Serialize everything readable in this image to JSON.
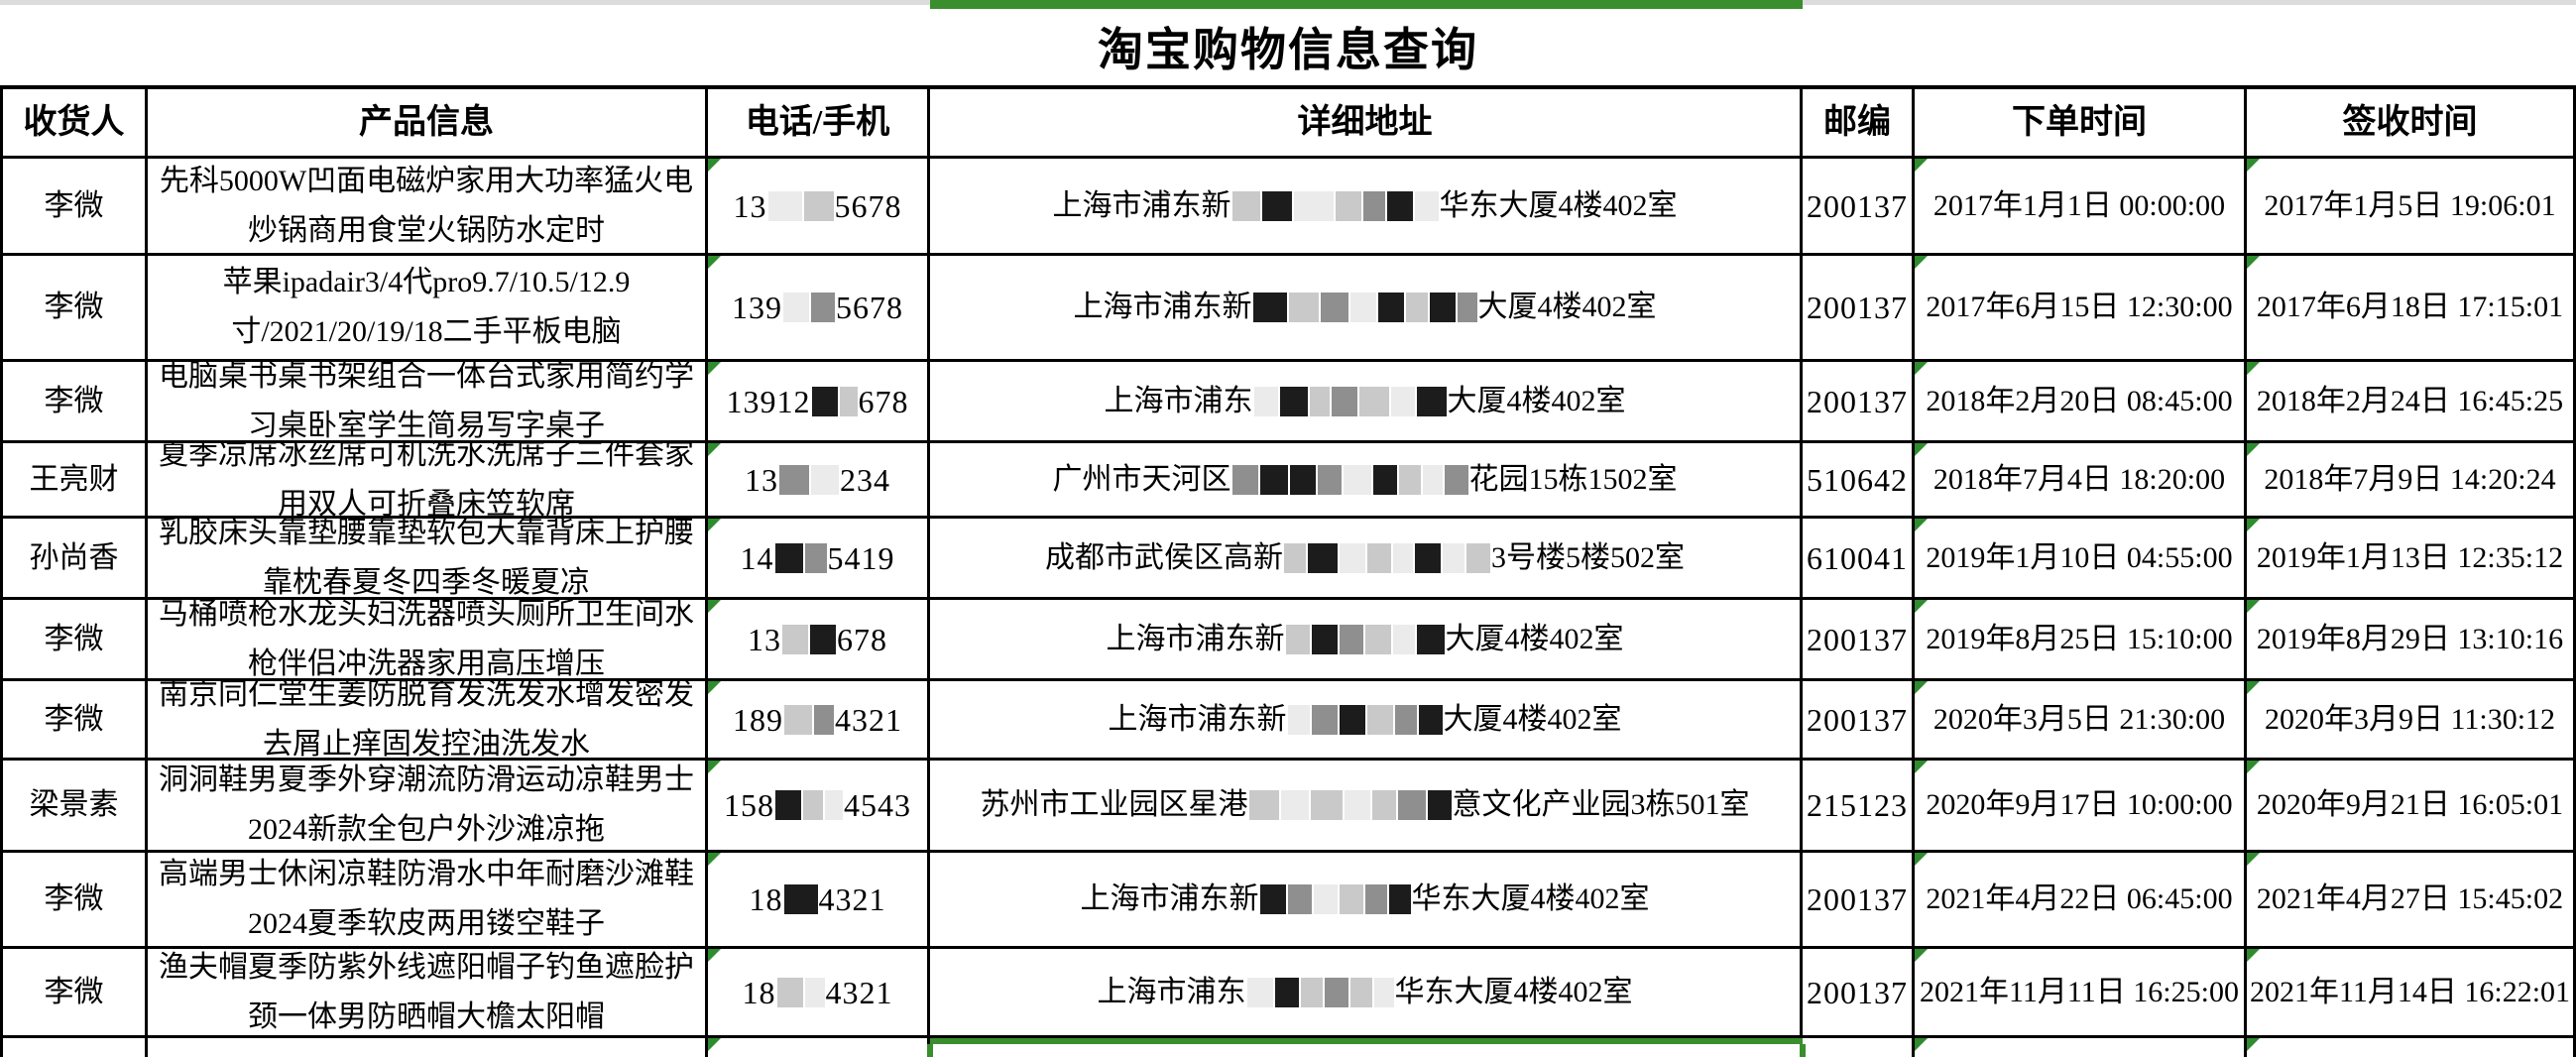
{
  "title": "淘宝购物信息查询",
  "columns": [
    {
      "key": "recipient",
      "label": "收货人"
    },
    {
      "key": "product",
      "label": "产品信息"
    },
    {
      "key": "phone",
      "label": "电话/手机"
    },
    {
      "key": "address",
      "label": "详细地址"
    },
    {
      "key": "postcode",
      "label": "邮编"
    },
    {
      "key": "order_time",
      "label": "下单时间"
    },
    {
      "key": "sign_time",
      "label": "签收时间"
    }
  ],
  "rows": [
    {
      "recipient": "李微",
      "product": "先科5000W凹面电磁炉家用大功率猛火电炒锅商用食堂火锅防水定时",
      "phone": {
        "prefix": "13",
        "boxes": [
          {
            "shade": "faint",
            "w": 34
          },
          {
            "shade": "light",
            "w": 30
          }
        ],
        "suffix": "5678"
      },
      "address": {
        "prefix": "上海市浦东新",
        "boxes": [
          {
            "shade": "light",
            "w": 28
          },
          {
            "shade": "dark",
            "w": 30
          },
          {
            "shade": "faint",
            "w": 40
          },
          {
            "shade": "light",
            "w": 26
          },
          {
            "shade": "mid",
            "w": 22
          },
          {
            "shade": "dark",
            "w": 26
          },
          {
            "shade": "faint",
            "w": 24
          }
        ],
        "suffix": "华东大厦4楼402室"
      },
      "postcode": "200137",
      "order_time": "2017年1月1日 00:00:00",
      "sign_time": "2017年1月5日 19:06:01"
    },
    {
      "recipient": "李微",
      "product": "苹果ipadair3/4代pro9.7/10.5/12.9寸/2021/20/19/18二手平板电脑",
      "phone": {
        "prefix": "139",
        "boxes": [
          {
            "shade": "faint",
            "w": 26
          },
          {
            "shade": "mid",
            "w": 24
          }
        ],
        "suffix": "5678"
      },
      "address": {
        "prefix": "上海市浦东新",
        "boxes": [
          {
            "shade": "dark",
            "w": 34
          },
          {
            "shade": "light",
            "w": 30
          },
          {
            "shade": "mid",
            "w": 28
          },
          {
            "shade": "faint",
            "w": 26
          },
          {
            "shade": "dark",
            "w": 26
          },
          {
            "shade": "light",
            "w": 22
          },
          {
            "shade": "dark",
            "w": 26
          },
          {
            "shade": "mid",
            "w": 20
          }
        ],
        "suffix": "大厦4楼402室"
      },
      "postcode": "200137",
      "order_time": "2017年6月15日 12:30:00",
      "sign_time": "2017年6月18日 17:15:01"
    },
    {
      "recipient": "李微",
      "product": "电脑桌书桌书架组合一体台式家用简约学习桌卧室学生简易写字桌子",
      "phone": {
        "prefix": "13912",
        "boxes": [
          {
            "shade": "dark",
            "w": 26
          },
          {
            "shade": "light",
            "w": 18
          }
        ],
        "suffix": "678"
      },
      "address": {
        "prefix": "上海市浦东",
        "boxes": [
          {
            "shade": "faint",
            "w": 24
          },
          {
            "shade": "dark",
            "w": 28
          },
          {
            "shade": "light",
            "w": 20
          },
          {
            "shade": "mid",
            "w": 26
          },
          {
            "shade": "light",
            "w": 30
          },
          {
            "shade": "faint",
            "w": 24
          },
          {
            "shade": "dark",
            "w": 30
          }
        ],
        "suffix": "大厦4楼402室"
      },
      "postcode": "200137",
      "order_time": "2018年2月20日 08:45:00",
      "sign_time": "2018年2月24日 16:45:25"
    },
    {
      "recipient": "王亮财",
      "product": "夏季凉席冰丝席可机洗水洗席子三件套家用双人可折叠床笠软席",
      "phone": {
        "prefix": "13",
        "boxes": [
          {
            "shade": "mid",
            "w": 30
          },
          {
            "shade": "faint",
            "w": 28
          }
        ],
        "suffix": "234"
      },
      "address": {
        "prefix": "广州市天河区",
        "boxes": [
          {
            "shade": "mid",
            "w": 26
          },
          {
            "shade": "dark",
            "w": 28
          },
          {
            "shade": "dark",
            "w": 26
          },
          {
            "shade": "mid",
            "w": 24
          },
          {
            "shade": "faint",
            "w": 28
          },
          {
            "shade": "dark",
            "w": 24
          },
          {
            "shade": "light",
            "w": 22
          },
          {
            "shade": "faint",
            "w": 20
          },
          {
            "shade": "mid",
            "w": 24
          }
        ],
        "suffix": "花园15栋1502室"
      },
      "postcode": "510642",
      "order_time": "2018年7月4日 18:20:00",
      "sign_time": "2018年7月9日 14:20:24"
    },
    {
      "recipient": "孙尚香",
      "product": "乳胶床头靠垫腰靠垫软包大靠背床上护腰靠枕春夏冬四季冬暖夏凉",
      "phone": {
        "prefix": "14",
        "boxes": [
          {
            "shade": "dark",
            "w": 28
          },
          {
            "shade": "mid",
            "w": 22
          }
        ],
        "suffix": "5419"
      },
      "address": {
        "prefix": "成都市武侯区高新",
        "boxes": [
          {
            "shade": "light",
            "w": 22
          },
          {
            "shade": "dark",
            "w": 30
          },
          {
            "shade": "faint",
            "w": 26
          },
          {
            "shade": "light",
            "w": 24
          },
          {
            "shade": "faint",
            "w": 20
          },
          {
            "shade": "dark",
            "w": 26
          },
          {
            "shade": "faint",
            "w": 22
          },
          {
            "shade": "light",
            "w": 24
          }
        ],
        "suffix": "3号楼5楼502室"
      },
      "postcode": "610041",
      "order_time": "2019年1月10日 04:55:00",
      "sign_time": "2019年1月13日 12:35:12"
    },
    {
      "recipient": "李微",
      "product": "马桶喷枪水龙头妇洗器喷头厕所卫生间水枪伴侣冲洗器家用高压增压",
      "phone": {
        "prefix": "13",
        "boxes": [
          {
            "shade": "light",
            "w": 26
          },
          {
            "shade": "dark",
            "w": 26
          }
        ],
        "suffix": "678"
      },
      "address": {
        "prefix": "上海市浦东新",
        "boxes": [
          {
            "shade": "light",
            "w": 24
          },
          {
            "shade": "dark",
            "w": 26
          },
          {
            "shade": "mid",
            "w": 24
          },
          {
            "shade": "light",
            "w": 26
          },
          {
            "shade": "faint",
            "w": 22
          },
          {
            "shade": "dark",
            "w": 28
          }
        ],
        "suffix": "大厦4楼402室"
      },
      "postcode": "200137",
      "order_time": "2019年8月25日 15:10:00",
      "sign_time": "2019年8月29日 13:10:16"
    },
    {
      "recipient": "李微",
      "product": "南京同仁堂生姜防脱育发洗发水增发密发去屑止痒固发控油洗发水",
      "phone": {
        "prefix": "189",
        "boxes": [
          {
            "shade": "light",
            "w": 28
          },
          {
            "shade": "mid",
            "w": 20
          }
        ],
        "suffix": "4321"
      },
      "address": {
        "prefix": "上海市浦东新",
        "boxes": [
          {
            "shade": "faint",
            "w": 22
          },
          {
            "shade": "mid",
            "w": 26
          },
          {
            "shade": "dark",
            "w": 26
          },
          {
            "shade": "light",
            "w": 26
          },
          {
            "shade": "mid",
            "w": 22
          },
          {
            "shade": "dark",
            "w": 24
          }
        ],
        "suffix": "大厦4楼402室"
      },
      "postcode": "200137",
      "order_time": "2020年3月5日 21:30:00",
      "sign_time": "2020年3月9日 11:30:12"
    },
    {
      "recipient": "梁景素",
      "product": "洞洞鞋男夏季外穿潮流防滑运动凉鞋男士2024新款全包户外沙滩凉拖",
      "phone": {
        "prefix": "158",
        "boxes": [
          {
            "shade": "dark",
            "w": 26
          },
          {
            "shade": "light",
            "w": 20
          },
          {
            "shade": "faint",
            "w": 18
          }
        ],
        "suffix": "4543"
      },
      "address": {
        "prefix": "苏州市工业园区星港",
        "boxes": [
          {
            "shade": "light",
            "w": 30
          },
          {
            "shade": "faint",
            "w": 28
          },
          {
            "shade": "light",
            "w": 32
          },
          {
            "shade": "faint",
            "w": 26
          },
          {
            "shade": "light",
            "w": 24
          },
          {
            "shade": "mid",
            "w": 28
          },
          {
            "shade": "dark",
            "w": 24
          }
        ],
        "suffix": "意文化产业园3栋501室"
      },
      "postcode": "215123",
      "order_time": "2020年9月17日 10:00:00",
      "sign_time": "2020年9月21日 16:05:01"
    },
    {
      "recipient": "李微",
      "product": "高端男士休闲凉鞋防滑水中年耐磨沙滩鞋2024夏季软皮两用镂空鞋子",
      "phone": {
        "prefix": "18",
        "boxes": [
          {
            "shade": "dark",
            "w": 34
          }
        ],
        "suffix": "4321"
      },
      "address": {
        "prefix": "上海市浦东新",
        "boxes": [
          {
            "shade": "dark",
            "w": 26
          },
          {
            "shade": "mid",
            "w": 24
          },
          {
            "shade": "faint",
            "w": 24
          },
          {
            "shade": "light",
            "w": 24
          },
          {
            "shade": "mid",
            "w": 22
          },
          {
            "shade": "dark",
            "w": 22
          }
        ],
        "suffix": "华东大厦4楼402室"
      },
      "postcode": "200137",
      "order_time": "2021年4月22日 06:45:00",
      "sign_time": "2021年4月27日 15:45:02"
    },
    {
      "recipient": "李微",
      "product": "渔夫帽夏季防紫外线遮阳帽子钓鱼遮脸护颈一体男防晒帽大檐太阳帽",
      "phone": {
        "prefix": "18",
        "boxes": [
          {
            "shade": "light",
            "w": 26
          },
          {
            "shade": "faint",
            "w": 20
          }
        ],
        "suffix": "4321"
      },
      "address": {
        "prefix": "上海市浦东",
        "boxes": [
          {
            "shade": "faint",
            "w": 26
          },
          {
            "shade": "dark",
            "w": 24
          },
          {
            "shade": "light",
            "w": 22
          },
          {
            "shade": "mid",
            "w": 24
          },
          {
            "shade": "light",
            "w": 22
          },
          {
            "shade": "faint",
            "w": 20
          }
        ],
        "suffix": "华东大厦4楼402室"
      },
      "postcode": "200137",
      "order_time": "2021年11月11日 16:25:00",
      "sign_time": "2021年11月14日 16:22:01"
    }
  ],
  "partial_row_visible": true,
  "colors": {
    "selection_green": "#3a8e2d",
    "triangle_green": "#2e8b2e",
    "grid_black": "#000000",
    "top_strip_gray": "#dcdcdc",
    "redaction_dark": "#1c1c1c",
    "redaction_mid": "#8f8f8f",
    "redaction_light": "#c9c9c9",
    "redaction_faint": "#ebebeb"
  }
}
